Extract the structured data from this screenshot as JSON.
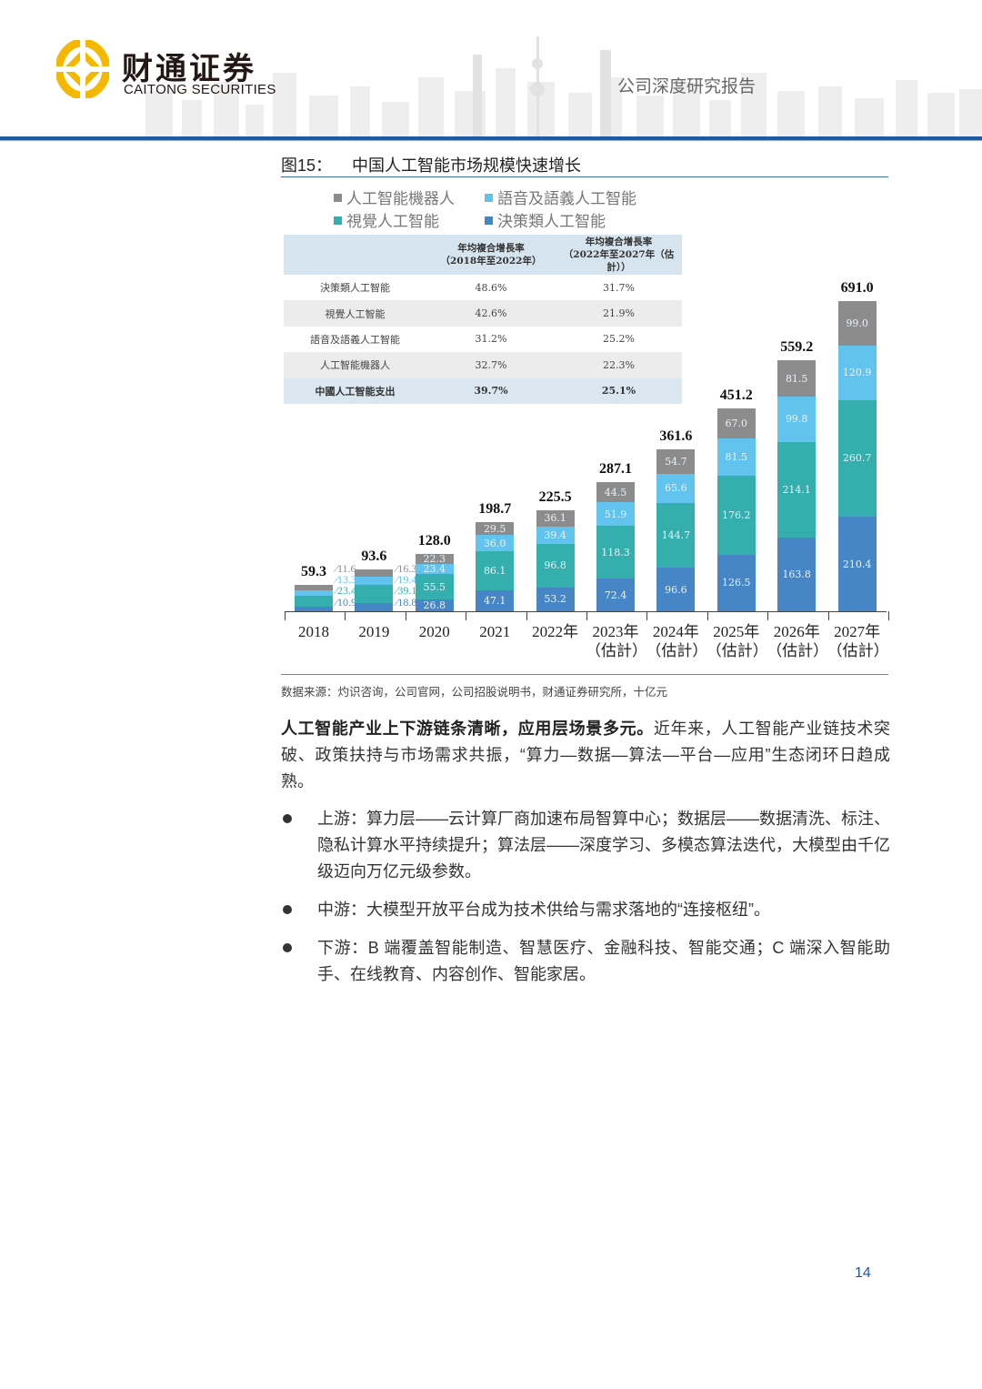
{
  "header": {
    "logo_cn": "财通证券",
    "logo_en": "CAITONG SECURITIES",
    "report_type": "公司深度研究报告"
  },
  "figure": {
    "number": "图15：",
    "title": "中国人工智能市场规模快速增长",
    "legend": [
      {
        "label": "人工智能機器人",
        "color": "#8c8c8c"
      },
      {
        "label": "語音及語義人工智能",
        "color": "#62c3ee"
      },
      {
        "label": "視覺人工智能",
        "color": "#35aeae"
      },
      {
        "label": "決策類人工智能",
        "color": "#4686c6"
      }
    ],
    "cagr_table": {
      "headers": [
        "",
        "年均複合增長率\n（2018年至2022年）",
        "年均複合增長率\n（2022年至2027年（估計））"
      ],
      "header_col1_line1": "年均複合增長率",
      "header_col1_line2": "（2018年至2022年）",
      "header_col2_line1": "年均複合增長率",
      "header_col2_line2": "（2022年至2027年（估計））",
      "rows": [
        {
          "name": "決策類人工智能",
          "cagr_18_22": "48.6%",
          "cagr_22_27": "31.7%"
        },
        {
          "name": "視覺人工智能",
          "cagr_18_22": "42.6%",
          "cagr_22_27": "21.9%"
        },
        {
          "name": "語音及語義人工智能",
          "cagr_18_22": "31.2%",
          "cagr_22_27": "25.2%"
        },
        {
          "name": "人工智能機器人",
          "cagr_18_22": "32.7%",
          "cagr_22_27": "22.3%"
        },
        {
          "name": "中國人工智能支出",
          "cagr_18_22": "39.7%",
          "cagr_22_27": "25.1%"
        }
      ]
    },
    "source": "数据来源：灼识咨询，公司官网，公司招股说明书，财通证券研究所，十亿元"
  },
  "chart_data": {
    "type": "bar",
    "stacked": true,
    "title": "中国人工智能市场规模快速增长",
    "unit": "十亿元",
    "categories": [
      "2018",
      "2019",
      "2020",
      "2021",
      "2022年",
      "2023年（估計）",
      "2024年（估計）",
      "2025年（估計）",
      "2026年（估計）",
      "2027年（估計）"
    ],
    "category_lines": [
      [
        "2018",
        ""
      ],
      [
        "2019",
        ""
      ],
      [
        "2020",
        ""
      ],
      [
        "2021",
        ""
      ],
      [
        "2022年",
        ""
      ],
      [
        "2023年",
        "（估計）"
      ],
      [
        "2024年",
        "（估計）"
      ],
      [
        "2025年",
        "（估計）"
      ],
      [
        "2026年",
        "（估計）"
      ],
      [
        "2027年",
        "（估計）"
      ]
    ],
    "series": [
      {
        "name": "決策類人工智能",
        "color": "#4686c6",
        "values": [
          10.9,
          18.8,
          26.8,
          47.1,
          53.2,
          72.4,
          96.6,
          126.5,
          163.8,
          210.4
        ]
      },
      {
        "name": "視覺人工智能",
        "color": "#35aeae",
        "values": [
          23.4,
          39.1,
          55.5,
          86.1,
          96.8,
          118.3,
          144.7,
          176.2,
          214.1,
          260.7
        ]
      },
      {
        "name": "語音及語義人工智能",
        "color": "#62c3ee",
        "values": [
          13.3,
          19.4,
          23.4,
          36.0,
          39.4,
          51.9,
          65.6,
          81.5,
          99.8,
          120.9
        ]
      },
      {
        "name": "人工智能機器人",
        "color": "#8c8c8c",
        "values": [
          11.6,
          16.3,
          22.3,
          29.5,
          36.1,
          44.5,
          54.7,
          67.0,
          81.5,
          99.0
        ]
      }
    ],
    "totals": [
      "59.3",
      "93.6",
      "128.0",
      "198.7",
      "225.5",
      "287.1",
      "361.6",
      "451.2",
      "559.2",
      "691.0"
    ],
    "value_labels": [
      [
        "10.9",
        "23.4",
        "13.3",
        "11.6"
      ],
      [
        "18.8",
        "39.1",
        "19.4",
        "16.3"
      ],
      [
        "26.8",
        "55.5",
        "23.4",
        "22.3"
      ],
      [
        "47.1",
        "86.1",
        "36.0",
        "29.5"
      ],
      [
        "53.2",
        "96.8",
        "39.4",
        "36.1"
      ],
      [
        "72.4",
        "118.3",
        "51.9",
        "44.5"
      ],
      [
        "96.6",
        "144.7",
        "65.6",
        "54.7"
      ],
      [
        "126.5",
        "176.2",
        "81.5",
        "67.0"
      ],
      [
        "163.8",
        "214.1",
        "99.8",
        "81.5"
      ],
      [
        "210.4",
        "260.7",
        "120.9",
        "99.0"
      ]
    ],
    "xlabel": "",
    "ylabel": "",
    "ylim": [
      0,
      700
    ],
    "grid": false,
    "legend_position": "top-left"
  },
  "body": {
    "lead_bold": "人工智能产业上下游链条清晰，应用层场景多元。",
    "lead_text": "近年来，人工智能产业链技术突破、政策扶持与市场需求共振，“算力—数据—算法—平台—应用”生态闭环日趋成熟。",
    "bullets": [
      "上游：算力层——云计算厂商加速布局智算中心；数据层——数据清洗、标注、隐私计算水平持续提升；算法层——深度学习、多模态算法迭代，大模型由千亿级迈向万亿元级参数。",
      "中游：大模型开放平台成为技术供给与需求落地的“连接枢纽”。",
      "下游：B 端覆盖智能制造、智慧医疗、金融科技、智能交通；C 端深入智能助手、在线教育、内容创作、智能家居。"
    ]
  },
  "footer": {
    "page_number": "14"
  }
}
